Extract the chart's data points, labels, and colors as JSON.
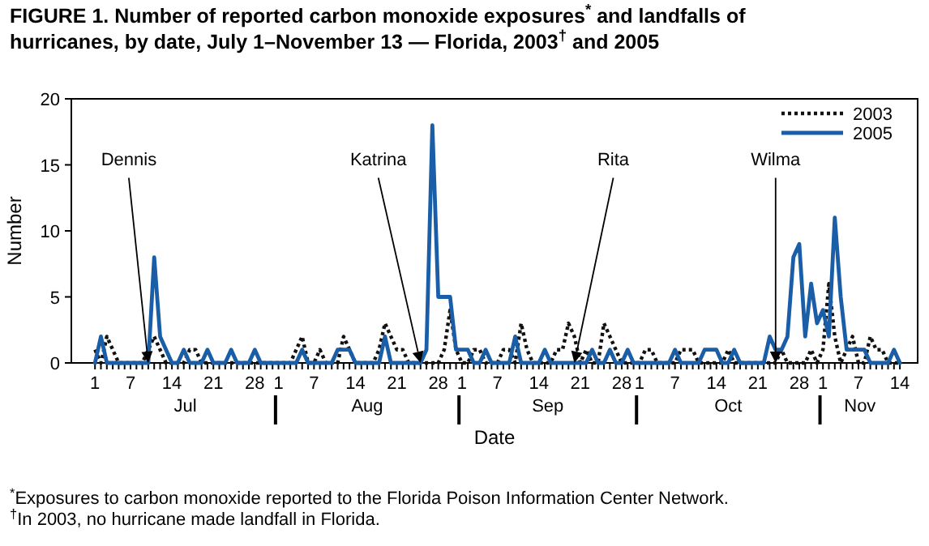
{
  "chart_data": {
    "type": "line",
    "title": "FIGURE 1. Number of reported carbon monoxide exposures$^{*}$ and landfalls of hurricanes, by date, July 1–November 13 — Florida, 2003$^{†}$ and 2005",
    "xlabel": "Date",
    "ylabel": "Number",
    "x": [
      "--07-01",
      "--07-02",
      "--07-03",
      "--07-04",
      "--07-05",
      "--07-06",
      "--07-07",
      "--07-08",
      "--07-09",
      "--07-10",
      "--07-11",
      "--07-12",
      "--07-13",
      "--07-14",
      "--07-15",
      "--07-16",
      "--07-17",
      "--07-18",
      "--07-19",
      "--07-20",
      "--07-21",
      "--07-22",
      "--07-23",
      "--07-24",
      "--07-25",
      "--07-26",
      "--07-27",
      "--07-28",
      "--07-29",
      "--07-30",
      "--07-31",
      "--08-01",
      "--08-02",
      "--08-03",
      "--08-04",
      "--08-05",
      "--08-06",
      "--08-07",
      "--08-08",
      "--08-09",
      "--08-10",
      "--08-11",
      "--08-12",
      "--08-13",
      "--08-14",
      "--08-15",
      "--08-16",
      "--08-17",
      "--08-18",
      "--08-19",
      "--08-20",
      "--08-21",
      "--08-22",
      "--08-23",
      "--08-24",
      "--08-25",
      "--08-26",
      "--08-27",
      "--08-28",
      "--08-29",
      "--08-30",
      "--08-31",
      "--09-01",
      "--09-02",
      "--09-03",
      "--09-04",
      "--09-05",
      "--09-06",
      "--09-07",
      "--09-08",
      "--09-09",
      "--09-10",
      "--09-11",
      "--09-12",
      "--09-13",
      "--09-14",
      "--09-15",
      "--09-16",
      "--09-17",
      "--09-18",
      "--09-19",
      "--09-20",
      "--09-21",
      "--09-22",
      "--09-23",
      "--09-24",
      "--09-25",
      "--09-26",
      "--09-27",
      "--09-28",
      "--09-29",
      "--09-30",
      "--10-01",
      "--10-02",
      "--10-03",
      "--10-04",
      "--10-05",
      "--10-06",
      "--10-07",
      "--10-08",
      "--10-09",
      "--10-10",
      "--10-11",
      "--10-12",
      "--10-13",
      "--10-14",
      "--10-15",
      "--10-16",
      "--10-17",
      "--10-18",
      "--10-19",
      "--10-20",
      "--10-21",
      "--10-22",
      "--10-23",
      "--10-24",
      "--10-25",
      "--10-26",
      "--10-27",
      "--10-28",
      "--10-29",
      "--10-30",
      "--10-31",
      "--11-01",
      "--11-02",
      "--11-03",
      "--11-04",
      "--11-05",
      "--11-06",
      "--11-07",
      "--11-08",
      "--11-09",
      "--11-10",
      "--11-11",
      "--11-12",
      "--11-13",
      "--11-14"
    ],
    "series": [
      {
        "name": "2003",
        "color": "#111111",
        "line_style": "dotted",
        "values": [
          1,
          0,
          2,
          1,
          0,
          0,
          0,
          0,
          0,
          1,
          2,
          1,
          0,
          0,
          0,
          0,
          1,
          1,
          0,
          0,
          0,
          0,
          0,
          0,
          0,
          0,
          0,
          0,
          0,
          0,
          0,
          0,
          0,
          0,
          1,
          2,
          0,
          0,
          1,
          0,
          0,
          0,
          2,
          1,
          0,
          0,
          0,
          0,
          1,
          3,
          2,
          1,
          1,
          0,
          0,
          0,
          0,
          0,
          0,
          1,
          4,
          1,
          0,
          0,
          1,
          1,
          0,
          0,
          0,
          1,
          1,
          0,
          3,
          1,
          0,
          0,
          0,
          0,
          1,
          1,
          3,
          2,
          0,
          1,
          0,
          0,
          3,
          2,
          1,
          0,
          0,
          0,
          0,
          1,
          1,
          0,
          0,
          0,
          0,
          1,
          1,
          1,
          0,
          0,
          0,
          0,
          0,
          1,
          0,
          0,
          0,
          0,
          0,
          0,
          0,
          0,
          1,
          0,
          0,
          0,
          0,
          1,
          0,
          1,
          6,
          2,
          0,
          1,
          2,
          0,
          0,
          2,
          1,
          1,
          0,
          0,
          0
        ]
      },
      {
        "name": "2005",
        "color": "#1a5ea8",
        "line_style": "solid",
        "values": [
          0,
          2,
          0,
          0,
          0,
          0,
          0,
          0,
          0,
          0,
          8,
          2,
          1,
          0,
          0,
          1,
          0,
          0,
          0,
          1,
          0,
          0,
          0,
          1,
          0,
          0,
          0,
          1,
          0,
          0,
          0,
          0,
          0,
          0,
          0,
          1,
          0,
          0,
          0,
          0,
          0,
          1,
          1,
          1,
          0,
          0,
          0,
          0,
          0,
          2,
          0,
          0,
          0,
          0,
          0,
          0,
          1,
          18,
          5,
          5,
          5,
          1,
          1,
          1,
          0,
          0,
          1,
          0,
          0,
          0,
          0,
          2,
          0,
          0,
          0,
          0,
          1,
          0,
          0,
          0,
          0,
          0,
          0,
          0,
          1,
          0,
          0,
          1,
          0,
          0,
          1,
          0,
          0,
          0,
          0,
          0,
          0,
          0,
          1,
          0,
          0,
          0,
          0,
          1,
          1,
          1,
          0,
          0,
          1,
          0,
          0,
          0,
          0,
          0,
          2,
          1,
          1,
          2,
          8,
          9,
          2,
          6,
          3,
          4,
          2,
          11,
          5,
          1,
          1,
          1,
          1,
          0,
          0,
          0,
          0,
          1,
          0
        ]
      }
    ],
    "xlim": [
      "--06-27",
      "--11-17"
    ],
    "xticks": [
      {
        "value": "--07-01",
        "label": "1"
      },
      {
        "value": "--07-07",
        "label": "7"
      },
      {
        "value": "--07-14",
        "label": "14"
      },
      {
        "value": "--07-21",
        "label": "21"
      },
      {
        "value": "--07-28",
        "label": "28"
      },
      {
        "value": "--08-01",
        "label": "1"
      },
      {
        "value": "--08-07",
        "label": "7"
      },
      {
        "value": "--08-14",
        "label": "14"
      },
      {
        "value": "--08-21",
        "label": "21"
      },
      {
        "value": "--08-28",
        "label": "28"
      },
      {
        "value": "--09-01",
        "label": "1"
      },
      {
        "value": "--09-07",
        "label": "7"
      },
      {
        "value": "--09-14",
        "label": "14"
      },
      {
        "value": "--09-21",
        "label": "21"
      },
      {
        "value": "--09-28",
        "label": "28"
      },
      {
        "value": "--10-01",
        "label": "1"
      },
      {
        "value": "--10-07",
        "label": "7"
      },
      {
        "value": "--10-14",
        "label": "14"
      },
      {
        "value": "--10-21",
        "label": "21"
      },
      {
        "value": "--10-28",
        "label": "28"
      },
      {
        "value": "--11-01",
        "label": "1"
      },
      {
        "value": "--11-07",
        "label": "7"
      },
      {
        "value": "--11-14",
        "label": "14"
      }
    ],
    "ylim": [
      0,
      20
    ],
    "yticks": [
      0,
      5,
      10,
      15,
      20
    ],
    "grid": false,
    "legend": "top right",
    "annotations": [
      {
        "text": "Dennis",
        "x": "--07-10",
        "y": 0
      },
      {
        "text": "Katrina",
        "x": "--08-25",
        "y": 0
      },
      {
        "text": "Rita",
        "x": "--09-20",
        "y": 0
      },
      {
        "text": "Wilma",
        "x": "--10-24",
        "y": 0
      },
      "Jul",
      "Aug",
      "Sep",
      "Oct",
      "Nov",
      "$^{*}$Exposures to carbon monoxide reported to the Florida Poison Information Center Network.",
      "$^{†}$In 2003, no hurricane made landfall in Florida."
    ]
  }
}
